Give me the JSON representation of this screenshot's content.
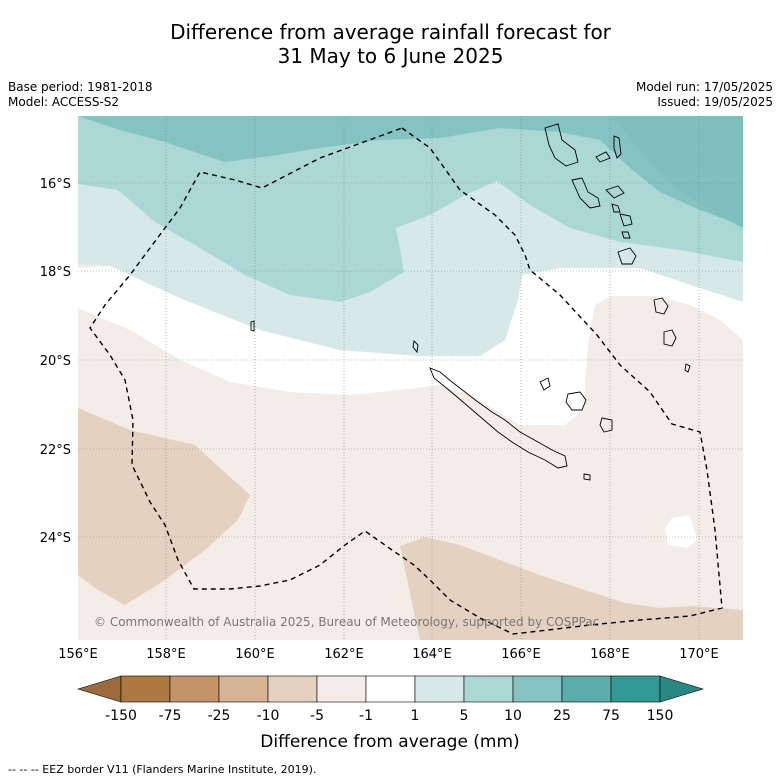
{
  "title": {
    "line1": "Difference from average rainfall forecast for",
    "line2": "31 May to 6 June 2025"
  },
  "meta": {
    "base_period": "Base period: 1981-2018",
    "model": "Model: ACCESS-S2",
    "model_run": "Model run: 17/05/2025",
    "issued": "Issued: 19/05/2025"
  },
  "map": {
    "lat_labels": [
      "16°S",
      "18°S",
      "20°S",
      "22°S",
      "24°S"
    ],
    "lon_labels": [
      "156°E",
      "158°E",
      "160°E",
      "162°E",
      "164°E",
      "166°E",
      "168°E",
      "170°E"
    ],
    "copyright": "© Commonwealth of Australia 2025, Bureau of Meteorology, supported by COSPPac"
  },
  "colorbar": {
    "label": "Difference from average (mm)",
    "ticks": [
      "-150",
      "-75",
      "-25",
      "-10",
      "-5",
      "-1",
      "1",
      "5",
      "10",
      "25",
      "75",
      "150"
    ],
    "colors": {
      "below_150": "#9c6a3d",
      "m150_m75": "#ae7842",
      "m75_m25": "#c49468",
      "m25_m10": "#d5b394",
      "m10_m5": "#e5d1c0",
      "m5_m1": "#f4ede7",
      "m1_p1": "#ffffff",
      "p1_p5": "#d6e9e8",
      "p5_p10": "#abd7d5",
      "p10_p25": "#84c3c1",
      "p25_p75": "#5aadaa",
      "p75_p150": "#329994",
      "above_150": "#2a8883"
    }
  },
  "footnote": "--  --  -- EEZ border V11 (Flanders Marine Institute, 2019)."
}
